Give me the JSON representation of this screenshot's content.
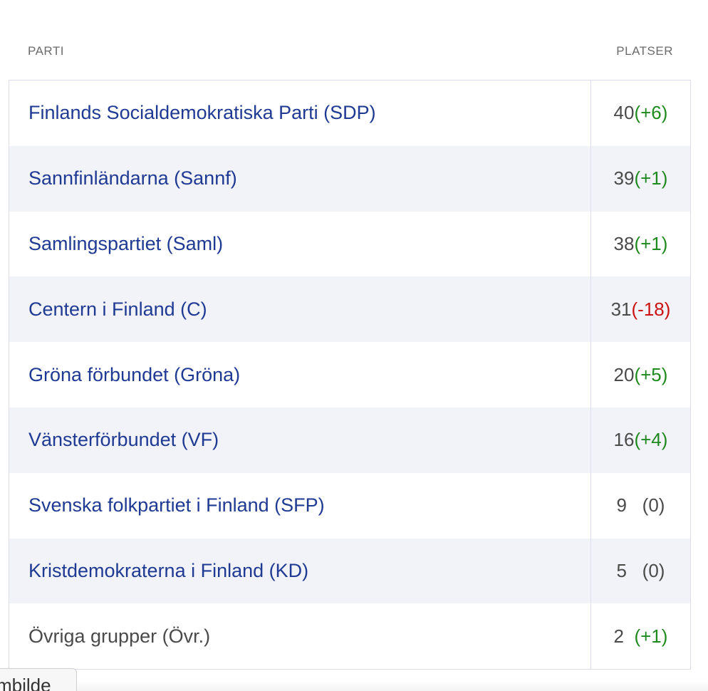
{
  "header": {
    "party_label": "PARTI",
    "seats_label": "PLATSER"
  },
  "rows": [
    {
      "party": "Finlands Socialdemokratiska Parti (SDP)",
      "seats": "40",
      "change": "(+6)"
    },
    {
      "party": "Sannfinländarna (Sannf)",
      "seats": "39",
      "change": "(+1)"
    },
    {
      "party": "Samlingspartiet (Saml)",
      "seats": "38",
      "change": "(+1)"
    },
    {
      "party": "Centern i Finland (C)",
      "seats": "31",
      "change": "(-18)"
    },
    {
      "party": "Gröna förbundet (Gröna)",
      "seats": "20",
      "change": "(+5)"
    },
    {
      "party": "Vänsterförbundet (VF)",
      "seats": "16",
      "change": "(+4)"
    },
    {
      "party": "Svenska folkpartiet i Finland (SFP)",
      "seats": "9",
      "change": "(0)"
    },
    {
      "party": "Kristdemokraterna i Finland (KD)",
      "seats": "5",
      "change": "(0)"
    },
    {
      "party": "Övriga grupper (Övr.)",
      "seats": "2",
      "change": "(+1)"
    }
  ],
  "tooltip": {
    "text": "mbilde"
  },
  "colors": {
    "link": "#1f3a93",
    "positive": "#1e8a1e",
    "negative": "#cc1111",
    "neutral": "#4a4a4a",
    "stripe": "#f2f2f9"
  }
}
